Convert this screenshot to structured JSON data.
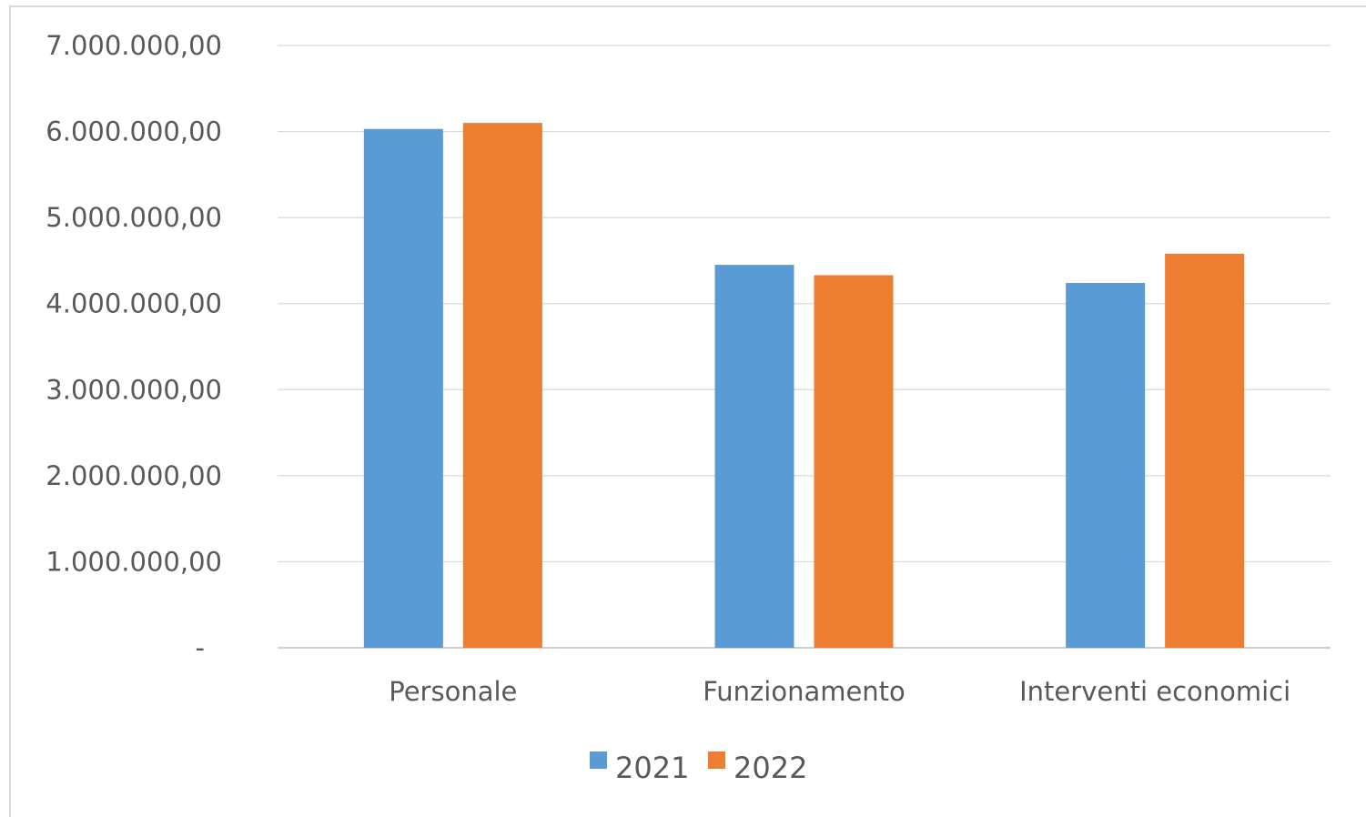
{
  "chart_data": {
    "type": "bar",
    "categories": [
      "Personale",
      "Funzionamento",
      "Interventi economici"
    ],
    "series": [
      {
        "name": "2021",
        "color": "#5b9bd5",
        "values": [
          6030000,
          4450000,
          4240000
        ]
      },
      {
        "name": "2022",
        "color": "#ed7d31",
        "values": [
          6100000,
          4330000,
          4580000
        ]
      }
    ],
    "ylim": [
      0,
      7000000
    ],
    "yticks": [
      0,
      1000000,
      2000000,
      3000000,
      4000000,
      5000000,
      6000000,
      7000000
    ],
    "ytick_labels": [
      "-",
      "1.000.000,00",
      "2.000.000,00",
      "3.000.000,00",
      "4.000.000,00",
      "5.000.000,00",
      "6.000.000,00",
      "7.000.000,00"
    ],
    "grid": true,
    "legend_position": "bottom"
  }
}
